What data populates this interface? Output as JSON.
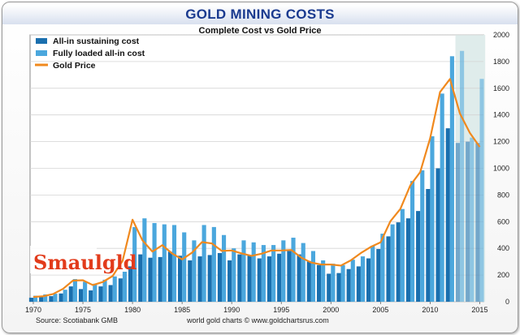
{
  "header": {
    "title": "GOLD MINING COSTS",
    "subtitle": "Complete Cost vs Gold Price"
  },
  "footer": {
    "source": "Source: Scotiabank GMB",
    "credit": "world gold charts © www.goldchartsrus.com"
  },
  "logo": {
    "text": "Smaulgld"
  },
  "colors": {
    "aisc": "#1a6fae",
    "fully_loaded": "#4ba7dd",
    "gold_price": "#f0891e",
    "forecast_band": "#dfeceb"
  },
  "chart_data": {
    "type": "bar",
    "title": "Complete Cost vs Gold Price",
    "x": [
      1970,
      1971,
      1972,
      1973,
      1974,
      1975,
      1976,
      1977,
      1978,
      1979,
      1980,
      1981,
      1982,
      1983,
      1984,
      1985,
      1986,
      1987,
      1988,
      1989,
      1990,
      1991,
      1992,
      1993,
      1994,
      1995,
      1996,
      1997,
      1998,
      1999,
      2000,
      2001,
      2002,
      2003,
      2004,
      2005,
      2006,
      2007,
      2008,
      2009,
      2010,
      2011,
      2012,
      2013,
      2014,
      2015
    ],
    "xticks": [
      1970,
      1975,
      1980,
      1985,
      1990,
      1995,
      2000,
      2005,
      2010,
      2015
    ],
    "ylim": [
      0,
      2000
    ],
    "yticks": [
      0,
      200,
      400,
      600,
      800,
      1000,
      1200,
      1400,
      1600,
      1800,
      2000
    ],
    "grid": true,
    "legend_position": "top-left",
    "forecast_years": [
      2013,
      2014,
      2015
    ],
    "series": [
      {
        "name": "All-in sustaining cost",
        "type": "bar",
        "values": [
          30,
          35,
          42,
          62,
          115,
          95,
          85,
          115,
          125,
          175,
          265,
          355,
          330,
          335,
          375,
          345,
          310,
          340,
          350,
          365,
          310,
          355,
          350,
          325,
          340,
          360,
          380,
          355,
          305,
          275,
          210,
          215,
          245,
          265,
          325,
          395,
          490,
          595,
          625,
          680,
          845,
          1000,
          1300,
          1190,
          1200,
          1190
        ]
      },
      {
        "name": "Fully loaded all-in cost",
        "type": "bar",
        "values": [
          45,
          55,
          60,
          90,
          170,
          150,
          135,
          165,
          190,
          225,
          560,
          625,
          590,
          580,
          575,
          520,
          460,
          575,
          560,
          500,
          400,
          460,
          445,
          425,
          425,
          460,
          480,
          440,
          380,
          310,
          285,
          275,
          315,
          340,
          420,
          510,
          580,
          695,
          905,
          985,
          1240,
          1560,
          1840,
          1880,
          1230,
          1670
        ]
      },
      {
        "name": "Gold Price",
        "type": "line",
        "values": [
          36,
          41,
          58,
          97,
          159,
          161,
          125,
          148,
          193,
          307,
          615,
          460,
          376,
          424,
          361,
          317,
          368,
          447,
          437,
          381,
          384,
          362,
          344,
          360,
          384,
          384,
          388,
          331,
          294,
          279,
          279,
          271,
          310,
          364,
          410,
          445,
          604,
          696,
          872,
          972,
          1225,
          1572,
          1669,
          1411,
          1266,
          1160
        ]
      }
    ]
  }
}
